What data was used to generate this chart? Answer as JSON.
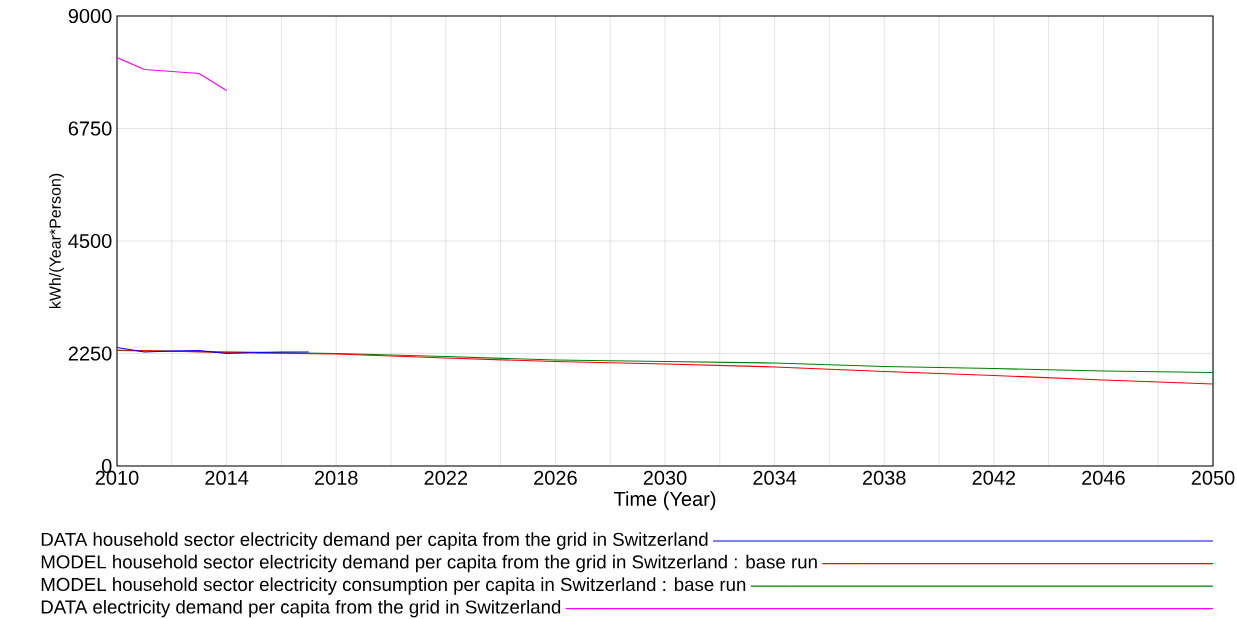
{
  "chart_data": {
    "type": "line",
    "xlabel": "Time (Year)",
    "ylabel": "kWh/(Year*Person)",
    "xlim": [
      2010,
      2050
    ],
    "ylim": [
      0,
      9000
    ],
    "xticks": [
      2010,
      {
        "value": 2012,
        "label": null
      },
      2014,
      {
        "value": 2016,
        "label": null
      },
      2018,
      {
        "value": 2020,
        "label": null
      },
      2022,
      {
        "value": 2024,
        "label": null
      },
      2026,
      {
        "value": 2028,
        "label": null
      },
      2030,
      {
        "value": 2032,
        "label": null
      },
      2034,
      {
        "value": 2036,
        "label": null
      },
      2038,
      {
        "value": 2040,
        "label": null
      },
      2042,
      {
        "value": 2044,
        "label": null
      },
      2046,
      {
        "value": 2048,
        "label": null
      },
      2050
    ],
    "yticks": [
      0,
      2250,
      4500,
      6750,
      9000
    ],
    "grid": true,
    "legend": "bottom",
    "series": [
      {
        "name": "DATA household sector electricity demand per capita from the grid in Switzerland",
        "color": "#0000ff",
        "x": [
          2010,
          2011,
          2012,
          2013,
          2014,
          2015,
          2016,
          2017
        ],
        "values": [
          2370,
          2280,
          2300,
          2310,
          2250,
          2270,
          2280,
          2280
        ]
      },
      {
        "name": "MODEL household sector electricity demand per capita from the grid in Switzerland : base run",
        "color": "#ff0000",
        "x": [
          2010,
          2014,
          2018,
          2022,
          2026,
          2030,
          2034,
          2038,
          2042,
          2046,
          2050
        ],
        "values": [
          2320,
          2270,
          2240,
          2160,
          2090,
          2040,
          1980,
          1890,
          1810,
          1720,
          1640
        ]
      },
      {
        "name": "MODEL household sector electricity consumption per capita in Switzerland : base run",
        "color": "#008000",
        "x": [
          2010,
          2014,
          2018,
          2022,
          2026,
          2030,
          2034,
          2038,
          2042,
          2046,
          2050
        ],
        "values": [
          2310,
          2280,
          2250,
          2190,
          2120,
          2090,
          2060,
          1990,
          1950,
          1900,
          1870
        ]
      },
      {
        "name": "DATA electricity demand per capita from the grid in Switzerland",
        "color": "#ff00ff",
        "x": [
          2010,
          2011,
          2012,
          2013,
          2014
        ],
        "values": [
          8170,
          7930,
          7890,
          7850,
          7510
        ]
      }
    ]
  }
}
